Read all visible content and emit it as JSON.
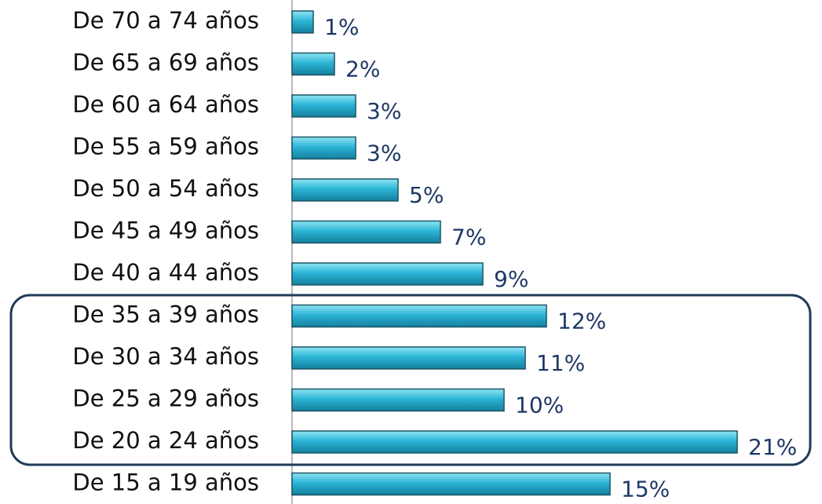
{
  "chart_data": {
    "type": "bar",
    "orientation": "horizontal",
    "categories": [
      "De 70 a 74 años",
      "De 65 a 69 años",
      "De 60 a 64 años",
      "De 55 a 59 años",
      "De 50 a 54 años",
      "De 45 a 49 años",
      "De 40 a 44 años",
      "De 35 a 39 años",
      "De 30 a 34 años",
      "De 25 a 29 años",
      "De 20 a 24 años",
      "De 15 a 19 años"
    ],
    "values": [
      1,
      2,
      3,
      3,
      5,
      7,
      9,
      12,
      11,
      10,
      21,
      15
    ],
    "value_labels": [
      "1%",
      "2%",
      "3%",
      "3%",
      "5%",
      "7%",
      "9%",
      "12%",
      "11%",
      "10%",
      "21%",
      "15%"
    ],
    "color": "#2cb5d6"
  }
}
